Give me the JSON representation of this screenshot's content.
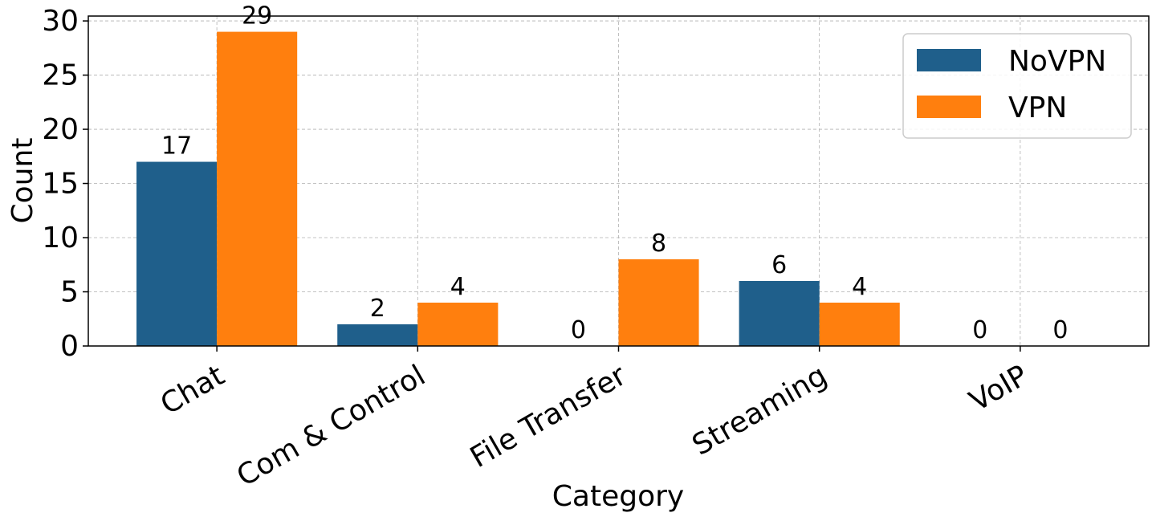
{
  "chart_data": {
    "type": "bar",
    "x_label": "Category",
    "y_label": "Count",
    "categories": [
      "Chat",
      "Com & Control",
      "File Transfer",
      "Streaming",
      "VoIP"
    ],
    "series": [
      {
        "name": "NoVPN",
        "color": "#1f5f8b",
        "values": [
          17,
          2,
          0,
          6,
          0
        ]
      },
      {
        "name": "VPN",
        "color": "#ff7f0e",
        "values": [
          29,
          4,
          8,
          4,
          0
        ]
      }
    ],
    "ylim": [
      0,
      30.45
    ],
    "yticks": [
      0,
      5,
      10,
      15,
      20,
      25,
      30
    ],
    "grid": true,
    "legend": "upper right"
  }
}
